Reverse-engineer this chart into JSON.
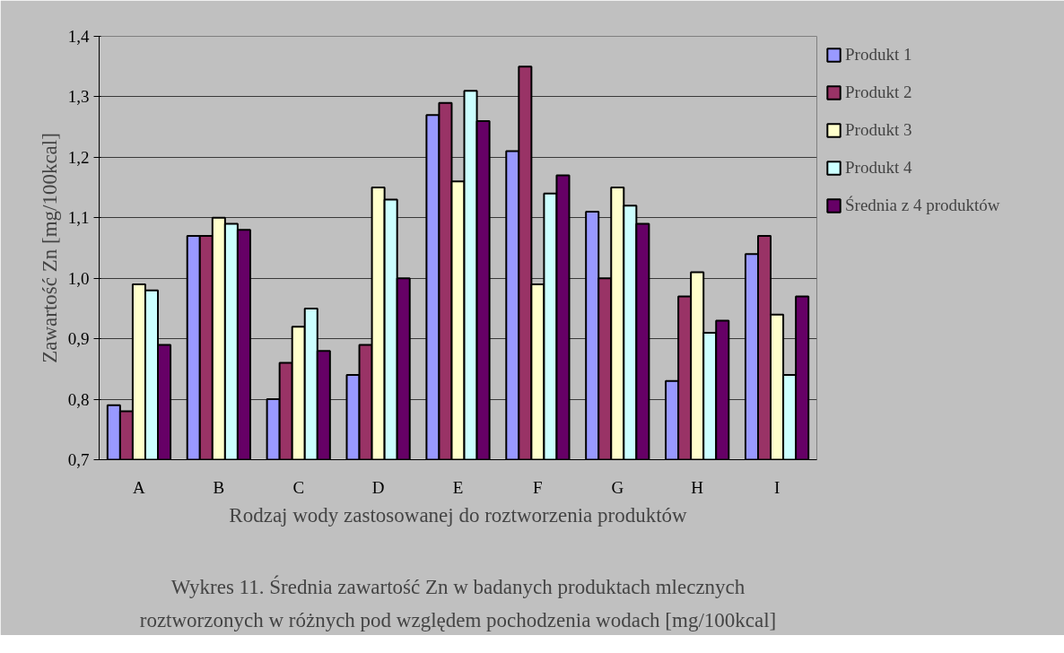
{
  "chart_data": {
    "type": "bar",
    "xlabel": "Rodzaj wody zastosowanej do roztworzenia produktów",
    "ylabel": "Zawartość Zn [mg/100kcal]",
    "categories": [
      "A",
      "B",
      "C",
      "D",
      "E",
      "F",
      "G",
      "H",
      "I"
    ],
    "series": [
      {
        "name": "Produkt 1",
        "color": "#9999ff",
        "values": [
          0.79,
          1.07,
          0.8,
          0.84,
          1.27,
          1.21,
          1.11,
          0.83,
          1.04
        ]
      },
      {
        "name": "Produkt 2",
        "color": "#993366",
        "values": [
          0.78,
          1.07,
          0.86,
          0.89,
          1.29,
          1.35,
          1.0,
          0.97,
          1.07
        ]
      },
      {
        "name": "Produkt 3",
        "color": "#ffffcc",
        "values": [
          0.99,
          1.1,
          0.92,
          1.15,
          1.16,
          0.99,
          1.15,
          1.01,
          0.94
        ]
      },
      {
        "name": "Produkt 4",
        "color": "#ccffff",
        "values": [
          0.98,
          1.09,
          0.95,
          1.13,
          1.31,
          1.14,
          1.12,
          0.91,
          0.84
        ]
      },
      {
        "name": "Średnia z 4 produktów",
        "color": "#660066",
        "values": [
          0.89,
          1.08,
          0.88,
          1.0,
          1.26,
          1.17,
          1.09,
          0.93,
          0.97
        ]
      }
    ],
    "ylim": [
      0.7,
      1.4
    ],
    "yticks": [
      {
        "value": 0.7,
        "label": "0,7"
      },
      {
        "value": 0.8,
        "label": "0,8"
      },
      {
        "value": 0.9,
        "label": "0,9"
      },
      {
        "value": 1.0,
        "label": "1,0"
      },
      {
        "value": 1.1,
        "label": "1,1"
      },
      {
        "value": 1.2,
        "label": "1,2"
      },
      {
        "value": 1.3,
        "label": "1,3"
      },
      {
        "value": 1.4,
        "label": "1,4"
      }
    ],
    "grid": "y",
    "legend": "right",
    "annotations": [
      "Wykres 11. Średnia zawartość Zn w badanych produktach mlecznych",
      "roztworzonych w różnych pod względem pochodzenia wodach [mg/100kcal]"
    ]
  }
}
